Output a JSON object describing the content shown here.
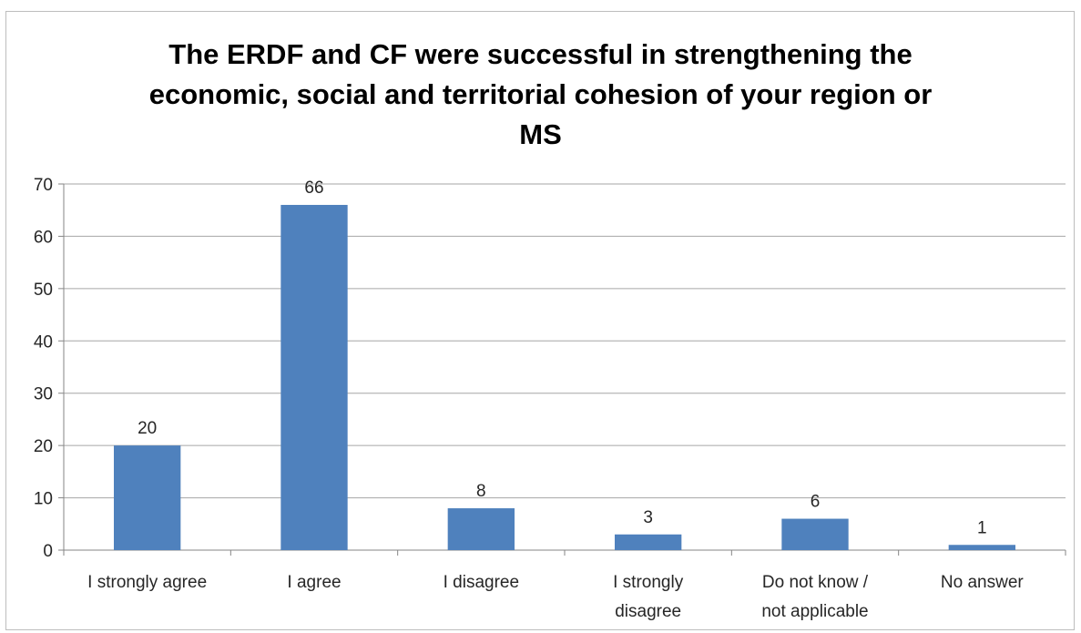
{
  "chart_data": {
    "type": "bar",
    "title": "The ERDF and CF were successful in strengthening the economic, social and territorial cohesion of your region or MS",
    "title_lines": [
      "The ERDF and CF were successful in strengthening the",
      "economic, social and territorial cohesion of your region or",
      "MS"
    ],
    "categories": [
      [
        "I strongly agree"
      ],
      [
        "I agree"
      ],
      [
        "I disagree"
      ],
      [
        "I strongly",
        "disagree"
      ],
      [
        "Do not know /",
        "not applicable"
      ],
      [
        "No answer"
      ]
    ],
    "values": [
      20,
      66,
      8,
      3,
      6,
      1
    ],
    "ylim": [
      0,
      70
    ],
    "yticks": [
      0,
      10,
      20,
      30,
      40,
      50,
      60,
      70
    ],
    "xlabel": "",
    "ylabel": "",
    "grid": true,
    "legend": false,
    "bar_color": "#4f81bd",
    "grid_color": "#a6a6a6",
    "data_labels": true
  }
}
